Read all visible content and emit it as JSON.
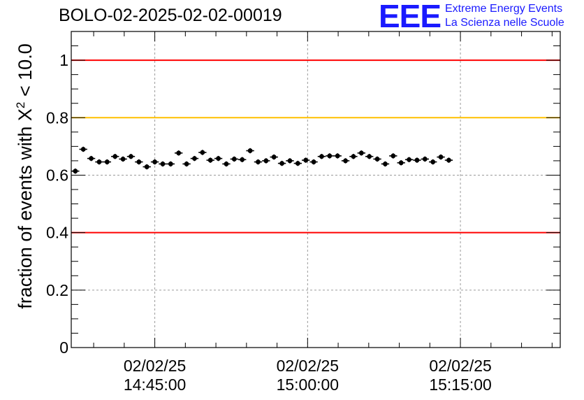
{
  "header": {
    "title": "BOLO-02-2025-02-02-00019",
    "logo_mark": "EEE",
    "logo_line1": "Extreme Energy Events",
    "logo_line2": "La Scienza nelle Scuole"
  },
  "axis": {
    "ylabel_prefix": "fraction of events with X",
    "ylabel_sup": "2",
    "ylabel_suffix": " < 10.0"
  },
  "colors": {
    "red_line": "#ff0000",
    "yellow_line": "#ffc000",
    "logo": "#1a1aff",
    "points": "#000000"
  },
  "chart_data": {
    "type": "scatter",
    "title": "BOLO-02-2025-02-02-00019",
    "xlabel": "",
    "ylabel": "fraction of events with X^2 < 10.0",
    "ylim": [
      0,
      1.1
    ],
    "xlim_minutes": [
      -8.2,
      39.8
    ],
    "xticks": [
      {
        "minute": 0,
        "date": "02/02/25",
        "time": "14:45:00"
      },
      {
        "minute": 15,
        "date": "02/02/25",
        "time": "15:00:00"
      },
      {
        "minute": 30,
        "date": "02/02/25",
        "time": "15:15:00"
      }
    ],
    "yticks": [
      0,
      0.2,
      0.4,
      0.6,
      0.8,
      1
    ],
    "ytick_labels": [
      "0",
      "0.2",
      "0.4",
      "0.6",
      "0.8",
      "1"
    ],
    "grid": true,
    "reference_lines": [
      {
        "y": 1.0,
        "color": "red"
      },
      {
        "y": 0.8,
        "color": "yellow"
      },
      {
        "y": 0.4,
        "color": "red"
      }
    ],
    "x_start_minute": -7.8,
    "x_step_minute": 0.78,
    "values": [
      0.614,
      0.69,
      0.658,
      0.646,
      0.646,
      0.665,
      0.656,
      0.665,
      0.646,
      0.629,
      0.646,
      0.639,
      0.639,
      0.677,
      0.639,
      0.658,
      0.679,
      0.652,
      0.658,
      0.639,
      0.656,
      0.654,
      0.685,
      0.646,
      0.65,
      0.663,
      0.641,
      0.65,
      0.641,
      0.652,
      0.646,
      0.665,
      0.667,
      0.667,
      0.65,
      0.665,
      0.677,
      0.665,
      0.656,
      0.639,
      0.667,
      0.643,
      0.654,
      0.652,
      0.656,
      0.646,
      0.663,
      0.652
    ],
    "error_bar": 0.009
  }
}
